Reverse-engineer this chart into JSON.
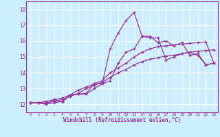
{
  "xlabel": "Windchill (Refroidissement éolien,°C)",
  "xlim": [
    -0.5,
    23.5
  ],
  "ylim": [
    11.5,
    18.5
  ],
  "xticks": [
    0,
    1,
    2,
    3,
    4,
    5,
    6,
    7,
    8,
    9,
    10,
    11,
    12,
    13,
    14,
    15,
    16,
    17,
    18,
    19,
    20,
    21,
    22,
    23
  ],
  "yticks": [
    12,
    13,
    14,
    15,
    16,
    17,
    18
  ],
  "bg_color": "#cceeff",
  "line_color": "#993399",
  "grid_color": "#ffffff",
  "lines": [
    {
      "x": [
        0,
        1,
        2,
        3,
        4,
        5,
        6,
        7,
        8,
        9,
        10,
        11,
        12,
        13,
        14,
        15,
        16,
        17,
        18,
        19,
        20,
        21,
        22,
        23
      ],
      "y": [
        12.1,
        12.1,
        12.1,
        12.2,
        12.3,
        12.5,
        12.7,
        13.0,
        13.2,
        13.4,
        13.7,
        14.0,
        14.2,
        14.5,
        14.7,
        14.85,
        14.95,
        15.05,
        15.1,
        15.2,
        15.3,
        15.35,
        15.4,
        15.45
      ]
    },
    {
      "x": [
        0,
        1,
        2,
        3,
        4,
        5,
        6,
        7,
        8,
        9,
        10,
        11,
        12,
        13,
        14,
        15,
        16,
        17,
        18,
        19,
        20,
        21,
        22,
        23
      ],
      "y": [
        12.1,
        12.1,
        12.2,
        12.3,
        12.4,
        12.6,
        12.9,
        13.1,
        13.3,
        13.5,
        14.0,
        14.3,
        14.6,
        15.0,
        15.3,
        15.5,
        15.65,
        15.7,
        15.75,
        15.8,
        15.85,
        15.9,
        15.95,
        14.6
      ]
    },
    {
      "x": [
        0,
        1,
        2,
        3,
        4,
        5,
        6,
        7,
        8,
        9,
        10,
        11,
        12,
        13,
        14,
        15,
        16,
        17,
        18,
        19,
        20,
        21,
        22,
        23
      ],
      "y": [
        12.1,
        12.1,
        12.05,
        12.1,
        12.2,
        12.6,
        12.65,
        12.65,
        13.0,
        13.3,
        13.5,
        14.6,
        15.3,
        15.5,
        16.3,
        16.2,
        16.2,
        14.8,
        15.0,
        15.2,
        15.3,
        15.1,
        14.5,
        14.6
      ]
    },
    {
      "x": [
        0,
        1,
        2,
        3,
        4,
        5,
        6,
        7,
        8,
        9,
        10,
        11,
        12,
        13,
        14,
        15,
        16,
        17,
        18,
        19,
        20,
        21,
        22,
        23
      ],
      "y": [
        12.1,
        12.1,
        12.0,
        12.3,
        12.15,
        12.6,
        12.65,
        12.7,
        13.3,
        13.3,
        15.5,
        16.5,
        17.3,
        17.8,
        16.3,
        16.3,
        15.9,
        16.0,
        15.7,
        15.9,
        15.1,
        15.2,
        14.5,
        14.6
      ]
    }
  ]
}
